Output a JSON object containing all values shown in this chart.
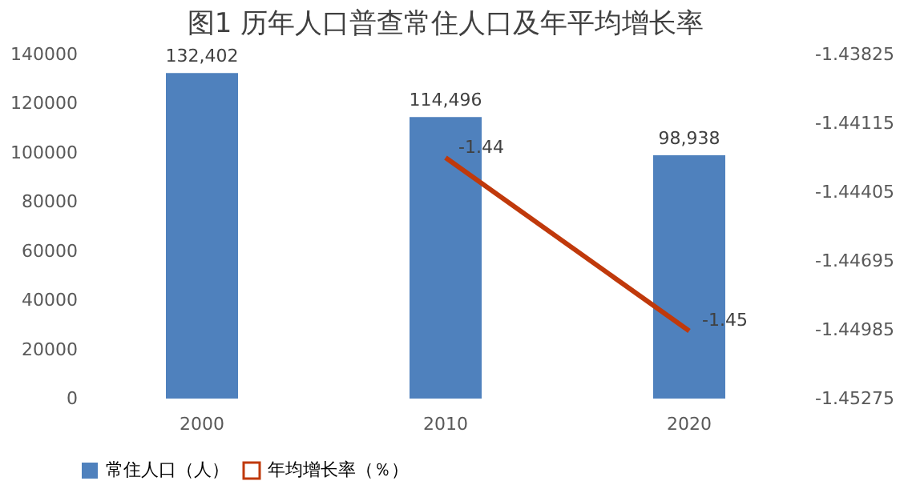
{
  "chart_data": {
    "type": "bar",
    "title": "图1  历年人口普查常住人口及年平均增长率",
    "categories": [
      "2000",
      "2010",
      "2020"
    ],
    "series": [
      {
        "name": "常住人口（人）",
        "color": "#4f81bd",
        "values": [
          132402,
          114496,
          98938
        ],
        "value_labels": [
          "132,402",
          "114,496",
          "98,938"
        ]
      },
      {
        "name": "年均增长率（％）",
        "type": "line",
        "axis": "y2",
        "color": "#c0390b",
        "values": [
          null,
          -1.4426,
          -1.4499
        ],
        "value_labels": [
          null,
          "-1.44",
          "-1.45"
        ]
      }
    ],
    "ylim": [
      0,
      140000
    ],
    "yticks": [
      0,
      20000,
      40000,
      60000,
      80000,
      100000,
      120000,
      140000
    ],
    "y2lim": [
      -1.45275,
      -1.43825
    ],
    "y2ticks": [
      -1.45275,
      -1.44985,
      -1.44695,
      -1.44405,
      -1.44115,
      -1.43825
    ],
    "grid": false,
    "legend": "bottom",
    "line_style": "solid",
    "marker": "none"
  }
}
